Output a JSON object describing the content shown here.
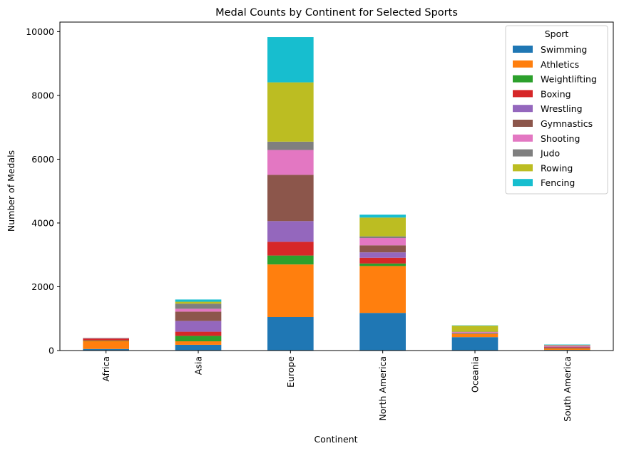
{
  "chart_data": {
    "type": "bar",
    "stacked": true,
    "title": "Medal Counts by Continent for Selected Sports",
    "xlabel": "Continent",
    "ylabel": "Number of Medals",
    "ylim": [
      0,
      10300
    ],
    "yticks": [
      0,
      2000,
      4000,
      6000,
      8000,
      10000
    ],
    "categories": [
      "Africa",
      "Asia",
      "Europe",
      "North America",
      "Oceania",
      "South America"
    ],
    "legend": {
      "title": "Sport",
      "position": "top-right"
    },
    "series": [
      {
        "name": "Swimming",
        "color": "#1f77b4",
        "values": [
          50,
          180,
          1050,
          1180,
          420,
          20
        ]
      },
      {
        "name": "Athletics",
        "color": "#ff7f0e",
        "values": [
          250,
          110,
          1650,
          1470,
          100,
          40
        ]
      },
      {
        "name": "Weightlifting",
        "color": "#2ca02c",
        "values": [
          15,
          170,
          280,
          80,
          10,
          10
        ]
      },
      {
        "name": "Boxing",
        "color": "#d62728",
        "values": [
          60,
          130,
          430,
          180,
          10,
          30
        ]
      },
      {
        "name": "Wrestling",
        "color": "#9467bd",
        "values": [
          10,
          340,
          650,
          170,
          10,
          10
        ]
      },
      {
        "name": "Gymnastics",
        "color": "#8c564b",
        "values": [
          5,
          290,
          1450,
          220,
          10,
          10
        ]
      },
      {
        "name": "Shooting",
        "color": "#e377c2",
        "values": [
          3,
          90,
          780,
          230,
          20,
          30
        ]
      },
      {
        "name": "Judo",
        "color": "#7f7f7f",
        "values": [
          5,
          160,
          260,
          50,
          10,
          20
        ]
      },
      {
        "name": "Rowing",
        "color": "#bcbd22",
        "values": [
          2,
          60,
          1860,
          590,
          190,
          10
        ]
      },
      {
        "name": "Fencing",
        "color": "#17becf",
        "values": [
          0,
          70,
          1420,
          90,
          10,
          10
        ]
      }
    ]
  }
}
